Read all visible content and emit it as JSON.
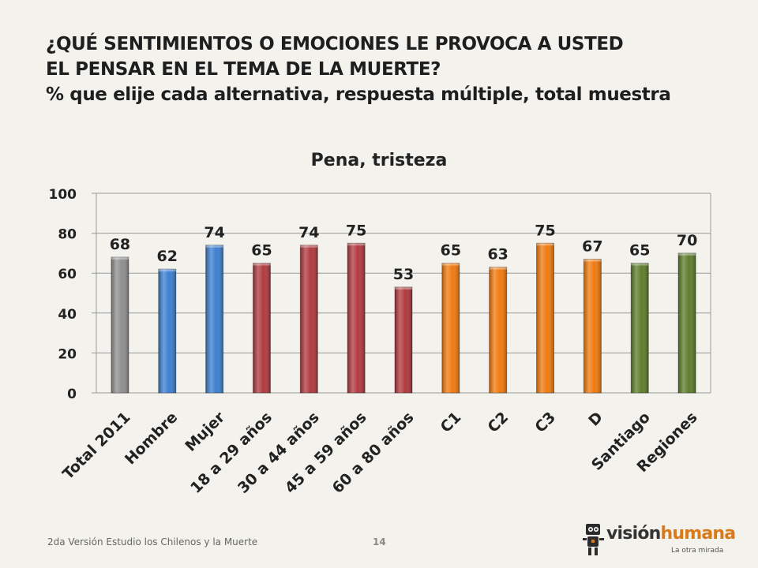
{
  "title": {
    "line1": "¿QUÉ SENTIMIENTOS O EMOCIONES LE PROVOCA A USTED",
    "line2": "EL PENSAR EN EL TEMA DE LA MUERTE?",
    "line3": "% que elije cada alternativa, respuesta múltiple, total muestra"
  },
  "footer": {
    "study": "2da Versión Estudio los Chilenos y la Muerte",
    "page": "14"
  },
  "logo": {
    "part1": "visión",
    "part2": "humana",
    "tagline": "La otra mirada"
  },
  "chart_data": {
    "type": "bar",
    "title": "Pena, tristeza",
    "categories": [
      "Total 2011",
      "Hombre",
      "Mujer",
      "18 a 29 años",
      "30 a 44 años",
      "45 a 59 años",
      "60 a 80 años",
      "C1",
      "C2",
      "C3",
      "D",
      "Santiago",
      "Regiones"
    ],
    "values": [
      68,
      62,
      74,
      65,
      74,
      75,
      53,
      65,
      63,
      75,
      67,
      65,
      70
    ],
    "colors": [
      "#8f8f8f",
      "#3d7fd1",
      "#3d7fd1",
      "#b03a3f",
      "#b03a3f",
      "#b03a3f",
      "#b03a3f",
      "#f07a10",
      "#f07a10",
      "#f07a10",
      "#f07a10",
      "#5e7d2c",
      "#5e7d2c"
    ],
    "ylim": [
      0,
      100
    ],
    "yticks": [
      0,
      20,
      40,
      60,
      80,
      100
    ],
    "grid": true
  }
}
